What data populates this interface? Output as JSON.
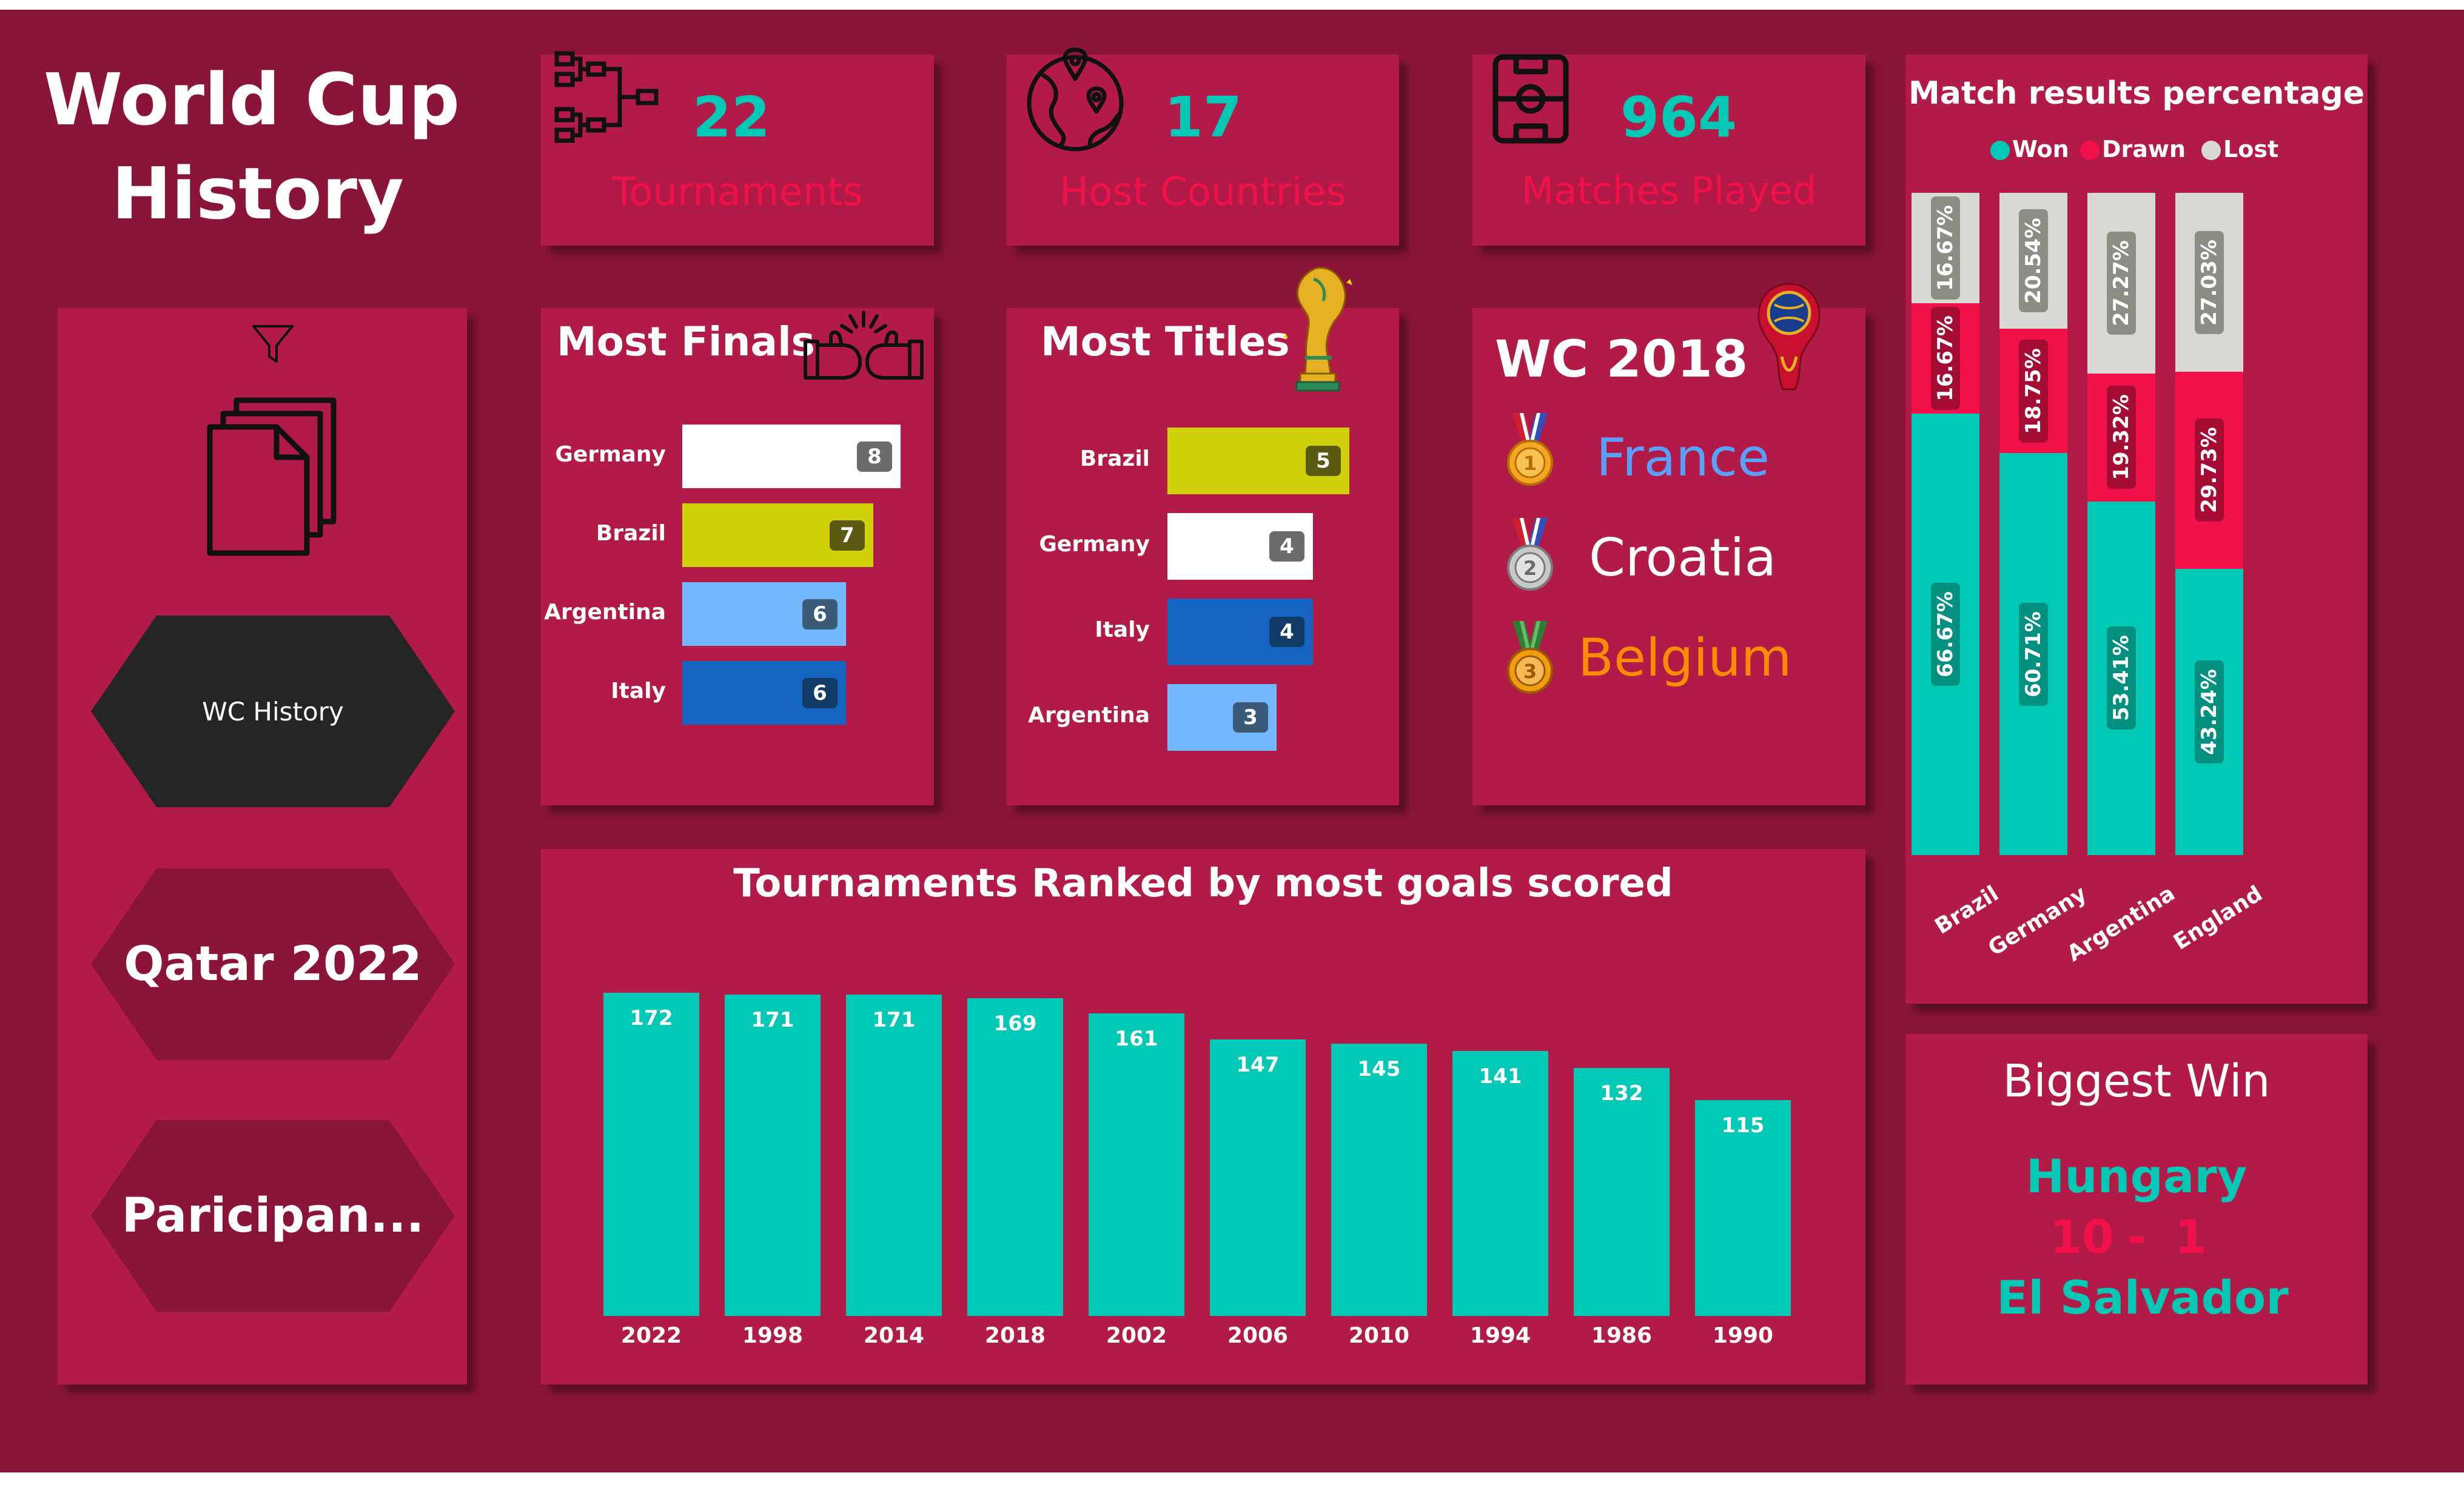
{
  "page": {
    "title_line1": "World Cup",
    "title_line2": "History"
  },
  "nav": {
    "buttons": [
      {
        "label": "WC History"
      },
      {
        "label": "Qatar 2022"
      },
      {
        "label": "Paricipan..."
      }
    ]
  },
  "kpis": [
    {
      "value": "22",
      "label": "Tournaments",
      "icon": "bracket-icon"
    },
    {
      "value": "17",
      "label": "Host Countries",
      "icon": "globe-icon"
    },
    {
      "value": "964",
      "label": "Matches Played",
      "icon": "pitch-icon"
    }
  ],
  "wc2018": {
    "title": "WC 2018",
    "podium": [
      {
        "team": "France",
        "color": "#5aa0ff"
      },
      {
        "team": "Croatia",
        "color": "#ffffff"
      },
      {
        "team": "Belgium",
        "color": "#ff8c00"
      }
    ]
  },
  "biggest_win": {
    "title": "Biggest Win",
    "winner": "Hungary",
    "score_home": "10",
    "score_sep": "-",
    "score_away": "1",
    "loser": "El Salvador"
  },
  "colors": {
    "teal": "#00c8b4",
    "background": "#8b1538",
    "card": "#b21a48",
    "drawn": "#f0104a",
    "lost": "#d9d9d4",
    "score": "#f0104a"
  },
  "chart_data": [
    {
      "type": "bar",
      "orientation": "horizontal",
      "title": "Most Finals",
      "categories": [
        "Germany",
        "Brazil",
        "Argentina",
        "Italy"
      ],
      "values": [
        8,
        7,
        6,
        6
      ],
      "colors": [
        "#ffffff",
        "#cfd20a",
        "#73b7ff",
        "#1565c0"
      ],
      "xlim": [
        0,
        8
      ]
    },
    {
      "type": "bar",
      "orientation": "horizontal",
      "title": "Most Titles",
      "categories": [
        "Brazil",
        "Germany",
        "Italy",
        "Argentina"
      ],
      "values": [
        5,
        4,
        4,
        3
      ],
      "colors": [
        "#cfd20a",
        "#ffffff",
        "#1565c0",
        "#73b7ff"
      ],
      "xlim": [
        0,
        5
      ]
    },
    {
      "type": "bar",
      "title": "Tournaments Ranked by most goals scored",
      "categories": [
        "2022",
        "1998",
        "2014",
        "2018",
        "2002",
        "2006",
        "2010",
        "1994",
        "1986",
        "1990"
      ],
      "values": [
        172,
        171,
        171,
        169,
        161,
        147,
        145,
        141,
        132,
        115
      ],
      "color": "#00c8b4",
      "ylim": [
        0,
        172
      ]
    },
    {
      "type": "bar",
      "stacked": "percent",
      "title": "Match results percentage",
      "legend_position": "top",
      "categories": [
        "Brazil",
        "Germany",
        "Argentina",
        "England"
      ],
      "series": [
        {
          "name": "Won",
          "color": "#00c8b4",
          "values": [
            66.67,
            60.71,
            53.41,
            43.24
          ]
        },
        {
          "name": "Drawn",
          "color": "#f0104a",
          "values": [
            16.67,
            18.75,
            19.32,
            29.73
          ]
        },
        {
          "name": "Lost",
          "color": "#d9d9d4",
          "values": [
            16.67,
            20.54,
            27.27,
            27.03
          ]
        }
      ],
      "value_labels": [
        [
          "66.67%",
          "60.71%",
          "53.41%",
          "43.24%"
        ],
        [
          "16.67%",
          "18.75%",
          "19.32%",
          "29.73%"
        ],
        [
          "16.67%",
          "20.54%",
          "27.27%",
          "27.03%"
        ]
      ],
      "ylim": [
        0,
        100
      ]
    }
  ]
}
